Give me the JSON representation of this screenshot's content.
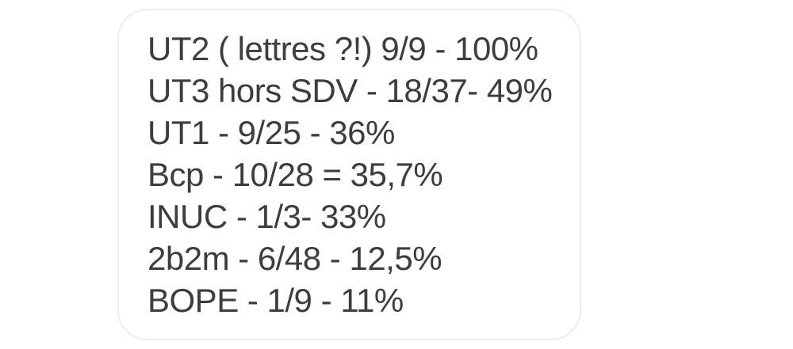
{
  "message": {
    "lines": [
      "UT2 ( lettres ?!) 9/9 - 100%",
      "UT3 hors SDV - 18/37- 49%",
      "UT1 - 9/25 - 36%",
      "Bcp - 10/28 = 35,7%",
      "INUC - 1/3- 33%",
      "2b2m - 6/48 - 12,5%",
      "BOPE - 1/9 - 11%"
    ]
  },
  "colors": {
    "background": "#ffffff",
    "bubble_fill": "#ffffff",
    "bubble_border": "#ededed",
    "text": "#3d3d3d"
  }
}
